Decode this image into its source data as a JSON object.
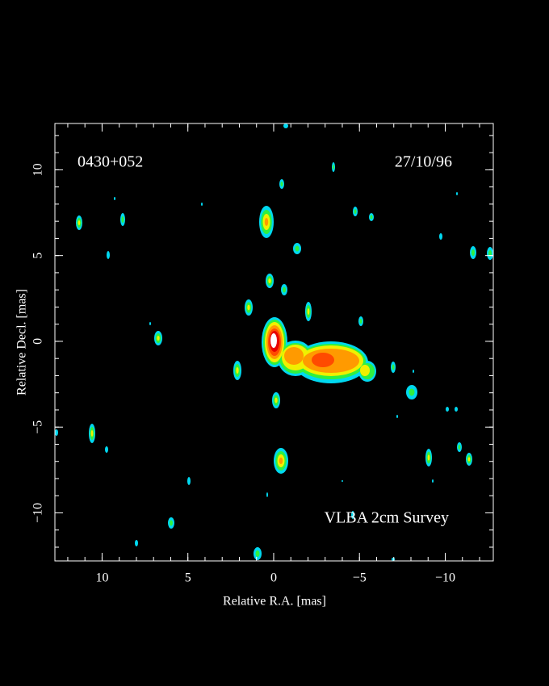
{
  "chart_data": {
    "type": "image",
    "source": "0430+052",
    "date": "27/10/96",
    "annotation": "VLBA 2cm Survey",
    "x_label": "Relative R.A. [mas]",
    "y_label": "Relative Decl. [mas]",
    "xlim": [
      12.75,
      -12.8
    ],
    "ylim": [
      -12.8,
      12.7
    ],
    "xticks": [
      10,
      5,
      0,
      {
        "value": -5,
        "label": "−5"
      },
      {
        "value": -10,
        "label": "−10"
      }
    ],
    "yticks": [
      {
        "value": -10,
        "label": "−10"
      },
      {
        "value": -5,
        "label": "−5"
      },
      0,
      5,
      10
    ],
    "xminorticks": [
      12,
      11,
      10,
      9,
      8,
      7,
      6,
      5,
      4,
      3,
      2,
      1,
      0,
      -1,
      -2,
      -3,
      -4,
      -5,
      -6,
      -7,
      -8,
      -9,
      -10,
      -11,
      -12
    ],
    "yminorticks": [
      -12,
      -11,
      -10,
      -9,
      -8,
      -7,
      -6,
      -5,
      -4,
      -3,
      -2,
      -1,
      0,
      1,
      2,
      3,
      4,
      5,
      6,
      7,
      8,
      9,
      10,
      11,
      12
    ]
  }
}
